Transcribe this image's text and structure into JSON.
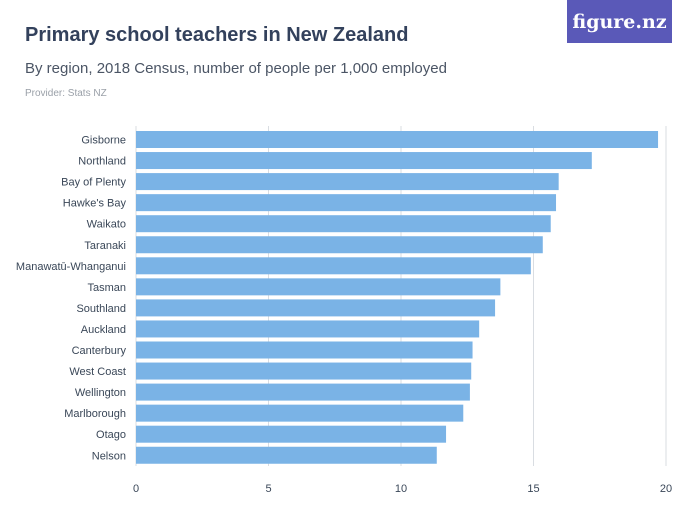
{
  "header": {
    "title": "Primary school teachers in New Zealand",
    "subtitle": "By region, 2018 Census, number of people per 1,000 employed",
    "provider": "Provider: Stats NZ",
    "logo_text": "figure.nz"
  },
  "colors": {
    "bar": "#7ab3e6",
    "grid": "#d9dde2",
    "logo_bg": "#5a59b8"
  },
  "chart_data": {
    "type": "bar",
    "orientation": "horizontal",
    "title": "Primary school teachers in New Zealand",
    "subtitle": "By region, 2018 Census, number of people per 1,000 employed",
    "categories": [
      "Gisborne",
      "Northland",
      "Bay of Plenty",
      "Hawke's Bay",
      "Waikato",
      "Taranaki",
      "Manawatū-Whanganui",
      "Tasman",
      "Southland",
      "Auckland",
      "Canterbury",
      "West Coast",
      "Wellington",
      "Marlborough",
      "Otago",
      "Nelson"
    ],
    "values": [
      19.7,
      17.2,
      15.95,
      15.85,
      15.65,
      15.35,
      14.9,
      13.75,
      13.55,
      12.95,
      12.7,
      12.65,
      12.6,
      12.35,
      11.7,
      11.35
    ],
    "xlim": [
      0,
      20
    ],
    "xticks": [
      0,
      5,
      10,
      15,
      20
    ],
    "grid": true,
    "legend": "none",
    "xlabel": "",
    "ylabel": ""
  }
}
